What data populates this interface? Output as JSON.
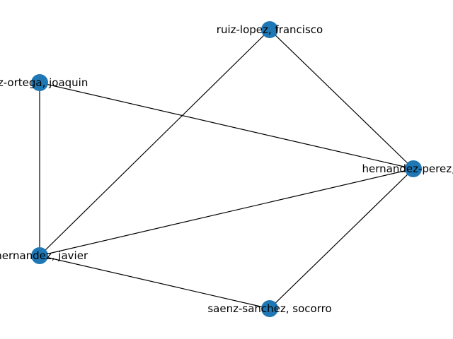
{
  "colors": {
    "node": "#1f77b4",
    "edge": "#000000",
    "label": "#000000",
    "background": "#ffffff"
  },
  "nodes": [
    {
      "id": "ruiz",
      "label": "ruiz-lopez, francisco"
    },
    {
      "id": "ortega",
      "label": "ez-ortega, joaquin"
    },
    {
      "id": "hernandez-perez",
      "label": "hernandez-perez, y"
    },
    {
      "id": "hernandez-javier",
      "label": "-hernandez, javier"
    },
    {
      "id": "saenz",
      "label": "saenz-sanchez, socorro"
    }
  ],
  "edges": [
    {
      "source": "ruiz",
      "target": "hernandez-perez"
    },
    {
      "source": "ruiz",
      "target": "hernandez-javier"
    },
    {
      "source": "ortega",
      "target": "hernandez-javier"
    },
    {
      "source": "ortega",
      "target": "hernandez-perez"
    },
    {
      "source": "hernandez-javier",
      "target": "hernandez-perez"
    },
    {
      "source": "hernandez-javier",
      "target": "saenz"
    },
    {
      "source": "saenz",
      "target": "hernandez-perez"
    }
  ]
}
